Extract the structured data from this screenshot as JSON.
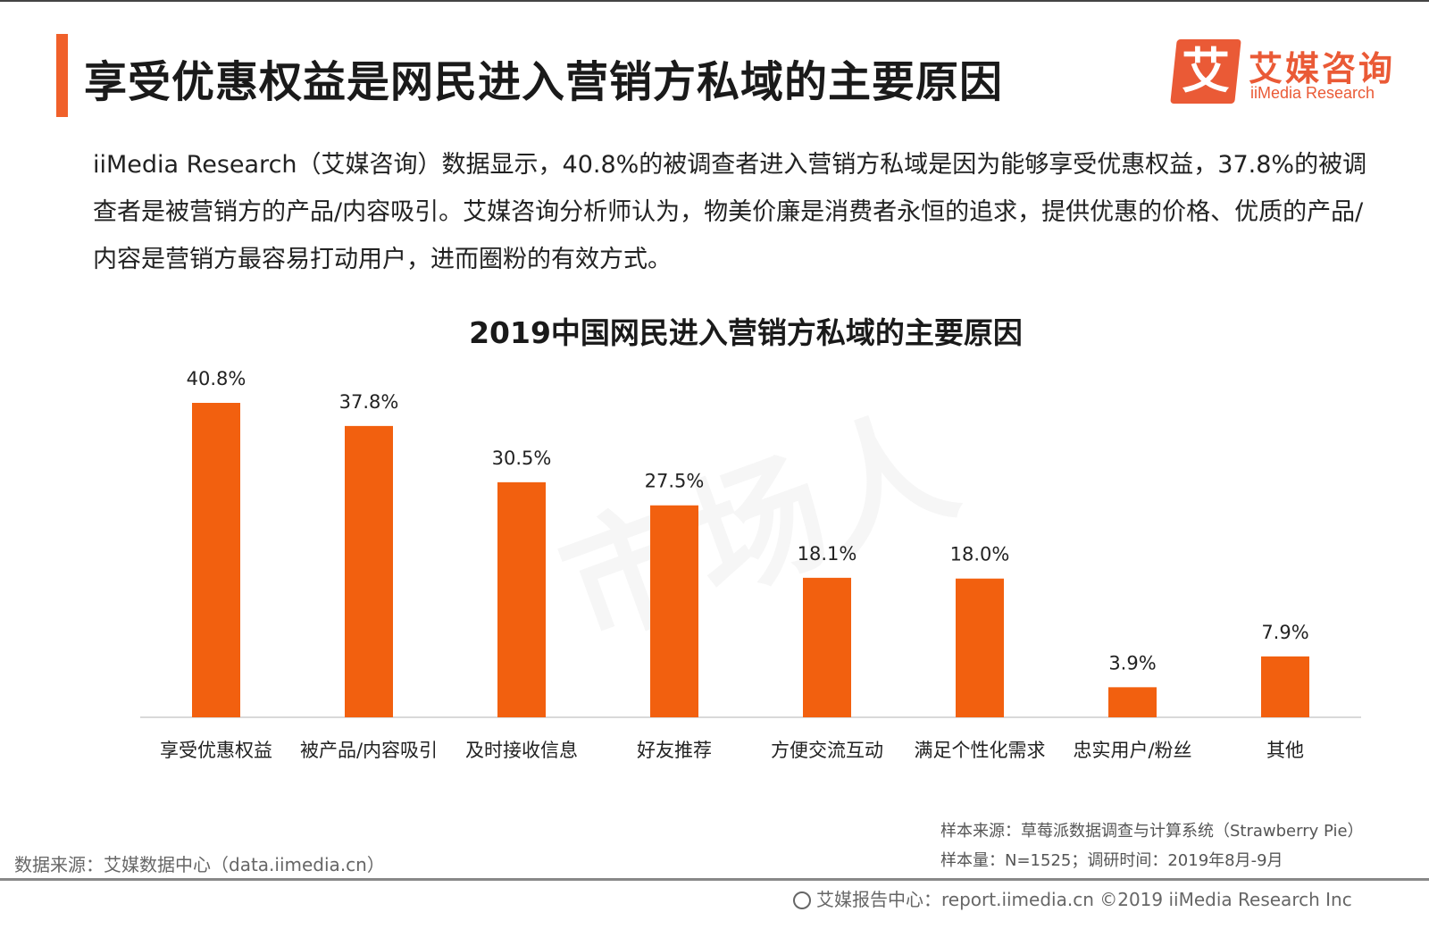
{
  "header": {
    "title": "享受优惠权益是网民进入营销方私域的主要原因",
    "logo_char": "艾",
    "logo_cn": "艾媒咨询",
    "logo_en": "iiMedia Research"
  },
  "summary": "iiMedia Research（艾媒咨询）数据显示，40.8%的被调查者进入营销方私域是因为能够享受优惠权益，37.8%的被调查者是被营销方的产品/内容吸引。艾媒咨询分析师认为，物美价廉是消费者永恒的追求，提供优惠的价格、优质的产品/内容是营销方最容易打动用户，进而圈粉的有效方式。",
  "colors": {
    "accent": "#f0602a",
    "bar": "#f2600f",
    "logo": "#ea5a36"
  },
  "chart_data": {
    "type": "bar",
    "title": "2019中国网民进入营销方私域的主要原因",
    "categories": [
      "享受优惠权益",
      "被产品/内容吸引",
      "及时接收信息",
      "好友推荐",
      "方便交流互动",
      "满足个性化需求",
      "忠实用户/粉丝",
      "其他"
    ],
    "values": [
      40.8,
      37.8,
      30.5,
      27.5,
      18.1,
      18.0,
      3.9,
      7.9
    ],
    "value_labels": [
      "40.8%",
      "37.8%",
      "30.5%",
      "27.5%",
      "18.1%",
      "18.0%",
      "3.9%",
      "7.9%"
    ],
    "unit": "%",
    "ylim": [
      0,
      45
    ],
    "xlabel": "",
    "ylabel": "",
    "grid": false,
    "legend": "none"
  },
  "footer": {
    "sample_source": "样本来源：草莓派数据调查与计算系统（Strawberry Pie）",
    "sample_size": "样本量：N=1525；调研时间：2019年8月-9月",
    "data_source": "数据来源：艾媒数据中心（data.iimedia.cn）",
    "copyright": "艾媒报告中心：report.iimedia.cn ©2019  iiMedia Research  Inc"
  }
}
